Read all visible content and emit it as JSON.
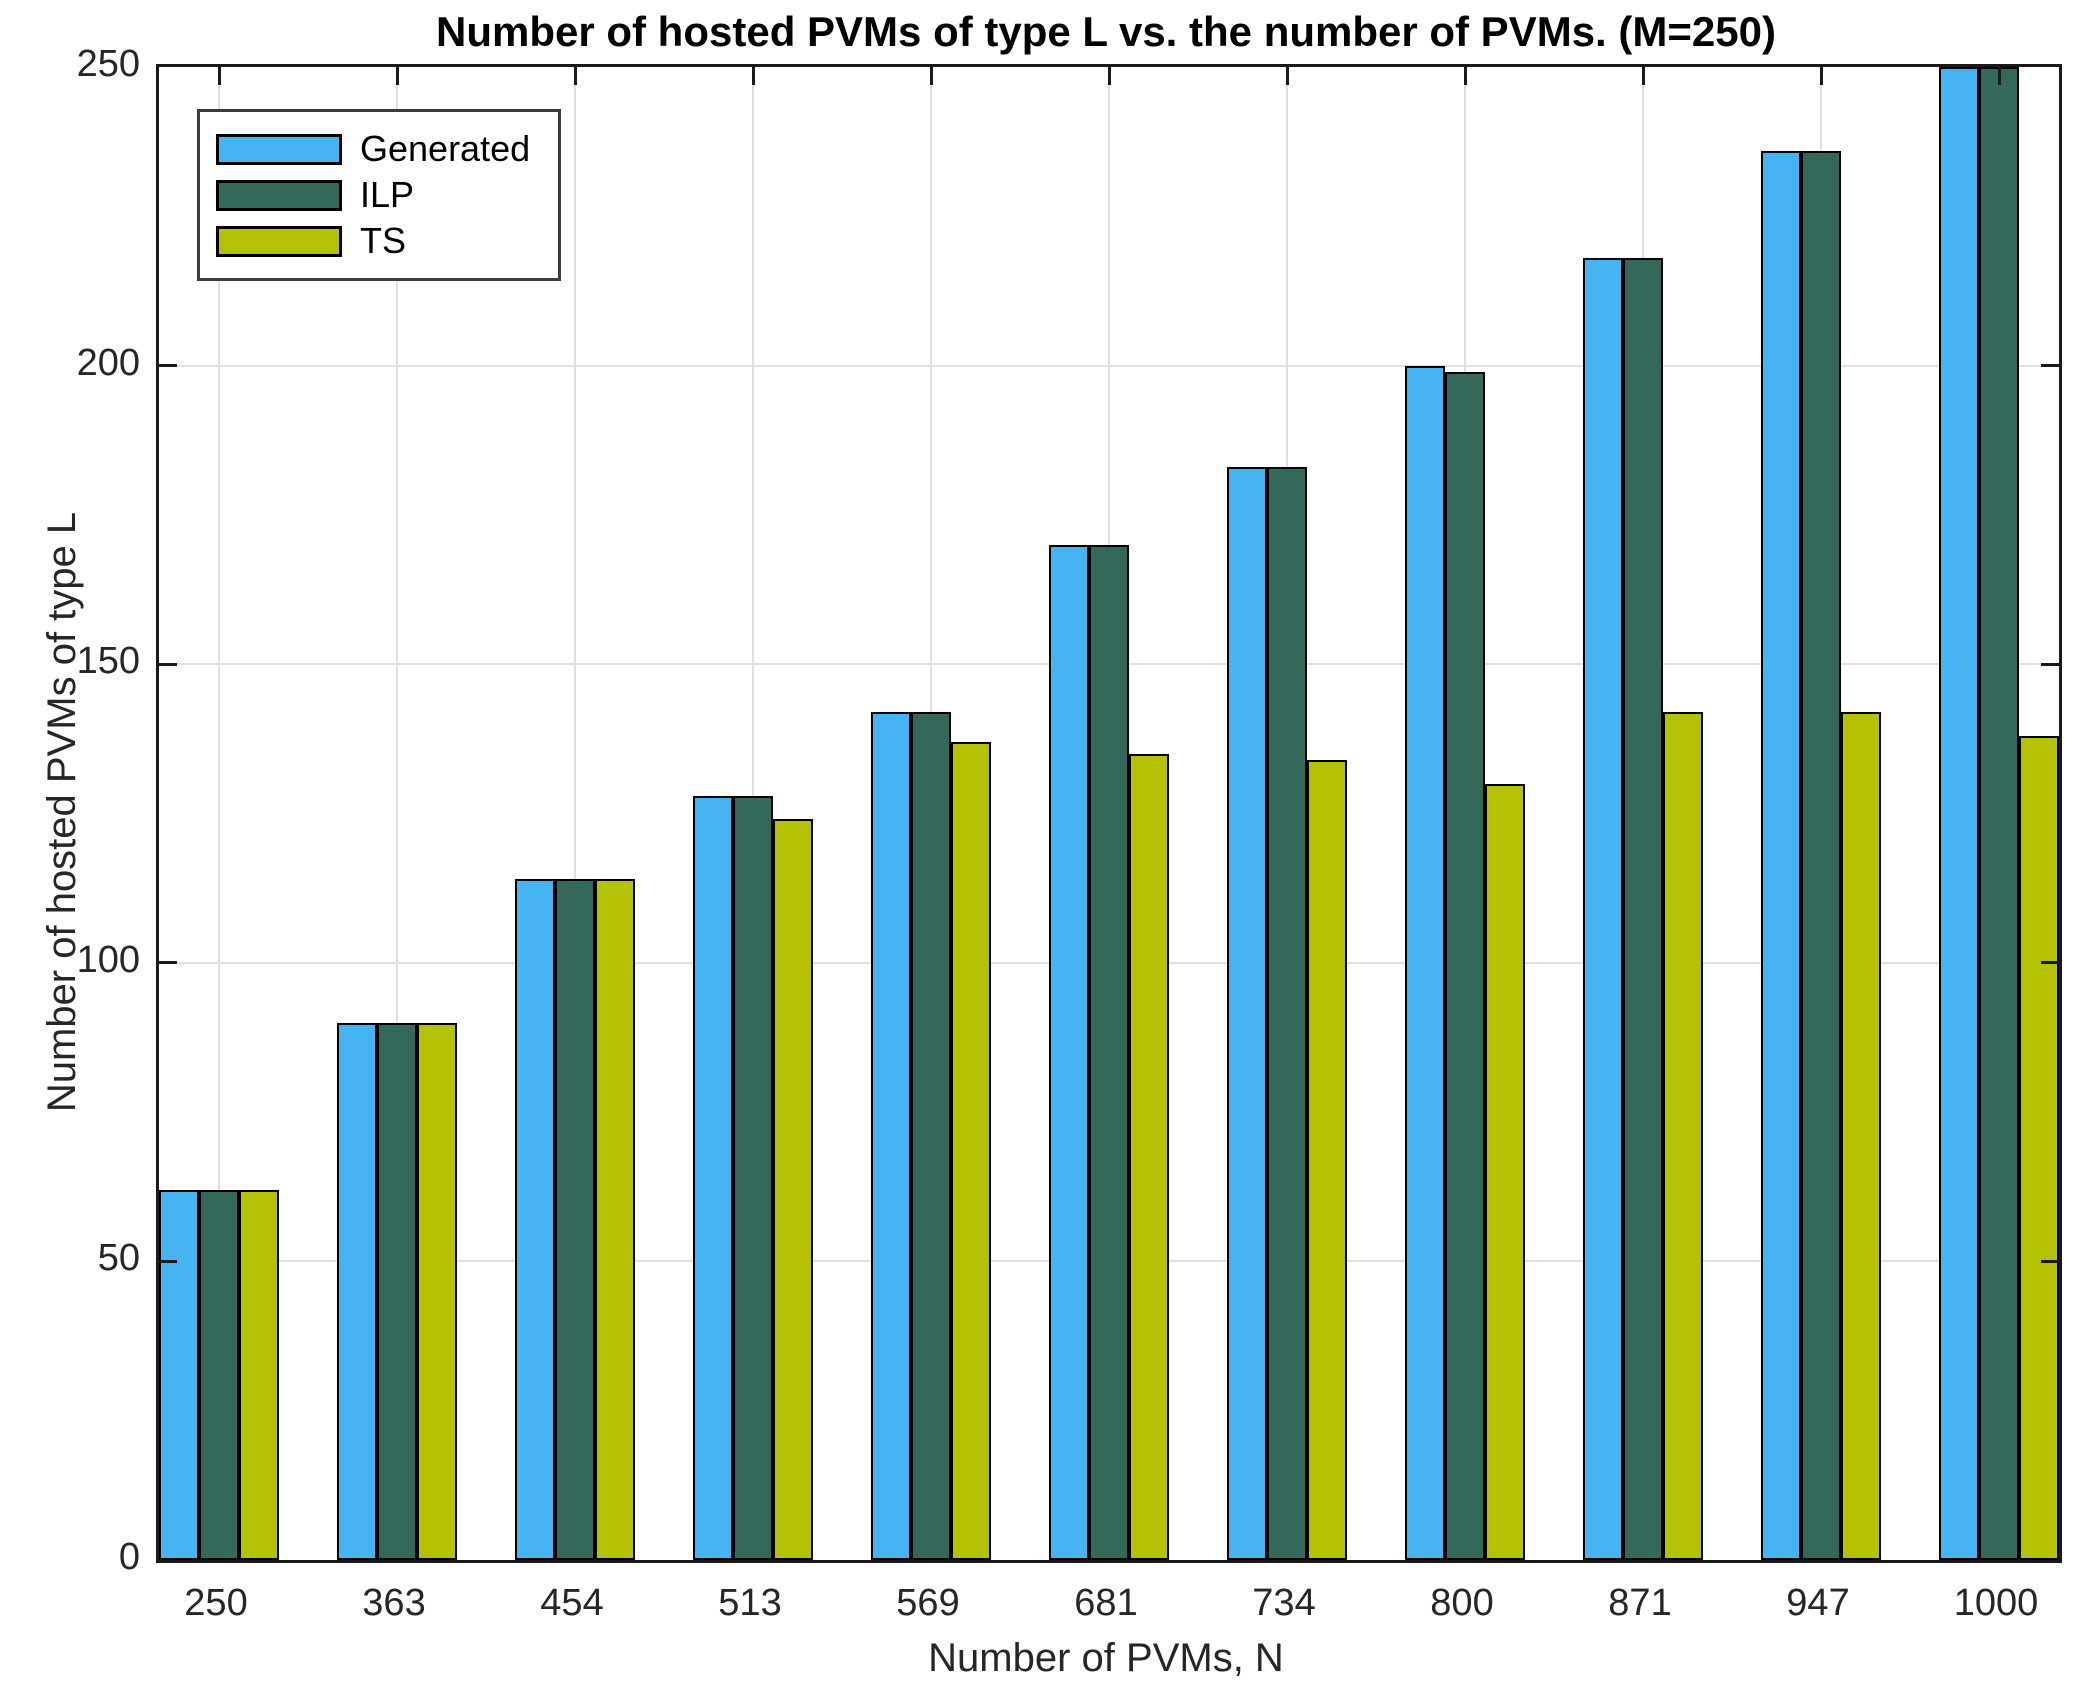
{
  "figure": {
    "title": "Number of hosted PVMs of type L vs. the number of PVMs. (M=250)",
    "xlabel": "Number of PVMs, N",
    "ylabel": "Number of hosted PVMs of type L"
  },
  "legend": {
    "entries": [
      "Generated",
      "ILP",
      "TS"
    ]
  },
  "colors": {
    "generated": "#45B4F1",
    "ilp": "#33685A",
    "ts": "#B4C104",
    "gridline": "#E0E0E0",
    "axis": "#1A1A1A",
    "bar_border": "#000000",
    "tick_label": "#262626",
    "background": "#FFFFFF"
  },
  "chart_data": {
    "type": "bar",
    "title": "Number of hosted PVMs of type L vs. the number of PVMs. (M=250)",
    "xlabel": "Number of PVMs, N",
    "ylabel": "Number of hosted PVMs of type L",
    "categories": [
      "250",
      "363",
      "454",
      "513",
      "569",
      "681",
      "734",
      "800",
      "871",
      "947",
      "1000"
    ],
    "series": [
      {
        "name": "Generated",
        "color": "#45B4F1",
        "values": [
          62,
          90,
          114,
          128,
          142,
          170,
          183,
          200,
          218,
          236,
          250
        ]
      },
      {
        "name": "ILP",
        "color": "#33685A",
        "values": [
          62,
          90,
          114,
          128,
          142,
          170,
          183,
          199,
          218,
          236,
          250
        ]
      },
      {
        "name": "TS",
        "color": "#B4C104",
        "values": [
          62,
          90,
          114,
          124,
          137,
          135,
          134,
          130,
          142,
          142,
          138
        ]
      }
    ],
    "ylim": [
      0,
      250
    ],
    "yticks": [
      0,
      50,
      100,
      150,
      200,
      250
    ],
    "grid": true,
    "legend_position": "top-left",
    "box": true
  }
}
